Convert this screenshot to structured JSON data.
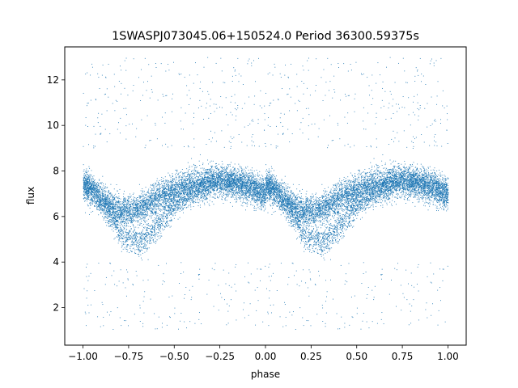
{
  "chart_data": {
    "type": "scatter",
    "title": "1SWASPJ073045.06+150524.0 Period 36300.59375s",
    "xlabel": "phase",
    "ylabel": "flux",
    "xlim": [
      -1.1,
      1.1
    ],
    "ylim": [
      0.35,
      13.45
    ],
    "xticks": [
      -1.0,
      -0.75,
      -0.5,
      -0.25,
      0.0,
      0.25,
      0.5,
      0.75,
      1.0
    ],
    "xtick_labels": [
      "−1.00",
      "−0.75",
      "−0.50",
      "−0.25",
      "0.00",
      "0.25",
      "0.50",
      "0.75",
      "1.00"
    ],
    "yticks": [
      2,
      4,
      6,
      8,
      10,
      12
    ],
    "ytick_labels": [
      "2",
      "4",
      "6",
      "8",
      "10",
      "12"
    ],
    "grid": false,
    "marker_color": "#1f77b4",
    "series": [
      {
        "description_of_shape": "folded light curve, repeated over two phase cycles",
        "main_branch": {
          "phase": [
            0.0,
            0.05,
            0.1,
            0.15,
            0.2,
            0.25,
            0.3,
            0.35,
            0.4,
            0.45,
            0.5,
            0.55,
            0.6,
            0.65,
            0.7,
            0.75,
            0.8,
            0.85,
            0.9,
            0.95,
            1.0
          ],
          "flux": [
            7.4,
            7.1,
            6.8,
            6.5,
            6.3,
            6.2,
            6.3,
            6.5,
            6.8,
            7.0,
            7.2,
            7.3,
            7.4,
            7.5,
            7.6,
            7.6,
            7.5,
            7.4,
            7.3,
            7.1,
            7.0
          ]
        },
        "secondary_branch": {
          "phase": [
            0.0,
            0.05,
            0.1,
            0.15,
            0.2,
            0.25,
            0.3,
            0.35,
            0.4,
            0.45,
            0.5,
            0.55,
            0.6,
            0.65,
            0.7,
            0.75,
            0.8,
            0.85,
            0.9,
            0.95,
            1.0
          ],
          "flux": [
            7.5,
            7.2,
            6.6,
            6.0,
            5.4,
            5.0,
            4.9,
            5.1,
            5.5,
            6.0,
            6.5,
            6.8,
            7.1,
            7.3,
            7.4,
            7.5,
            7.6,
            7.6,
            7.5,
            7.3,
            7.0
          ]
        },
        "outlier_high_flux_range": [
          9.0,
          13.0
        ],
        "outlier_low_flux_range": [
          1.0,
          4.0
        ]
      }
    ]
  }
}
